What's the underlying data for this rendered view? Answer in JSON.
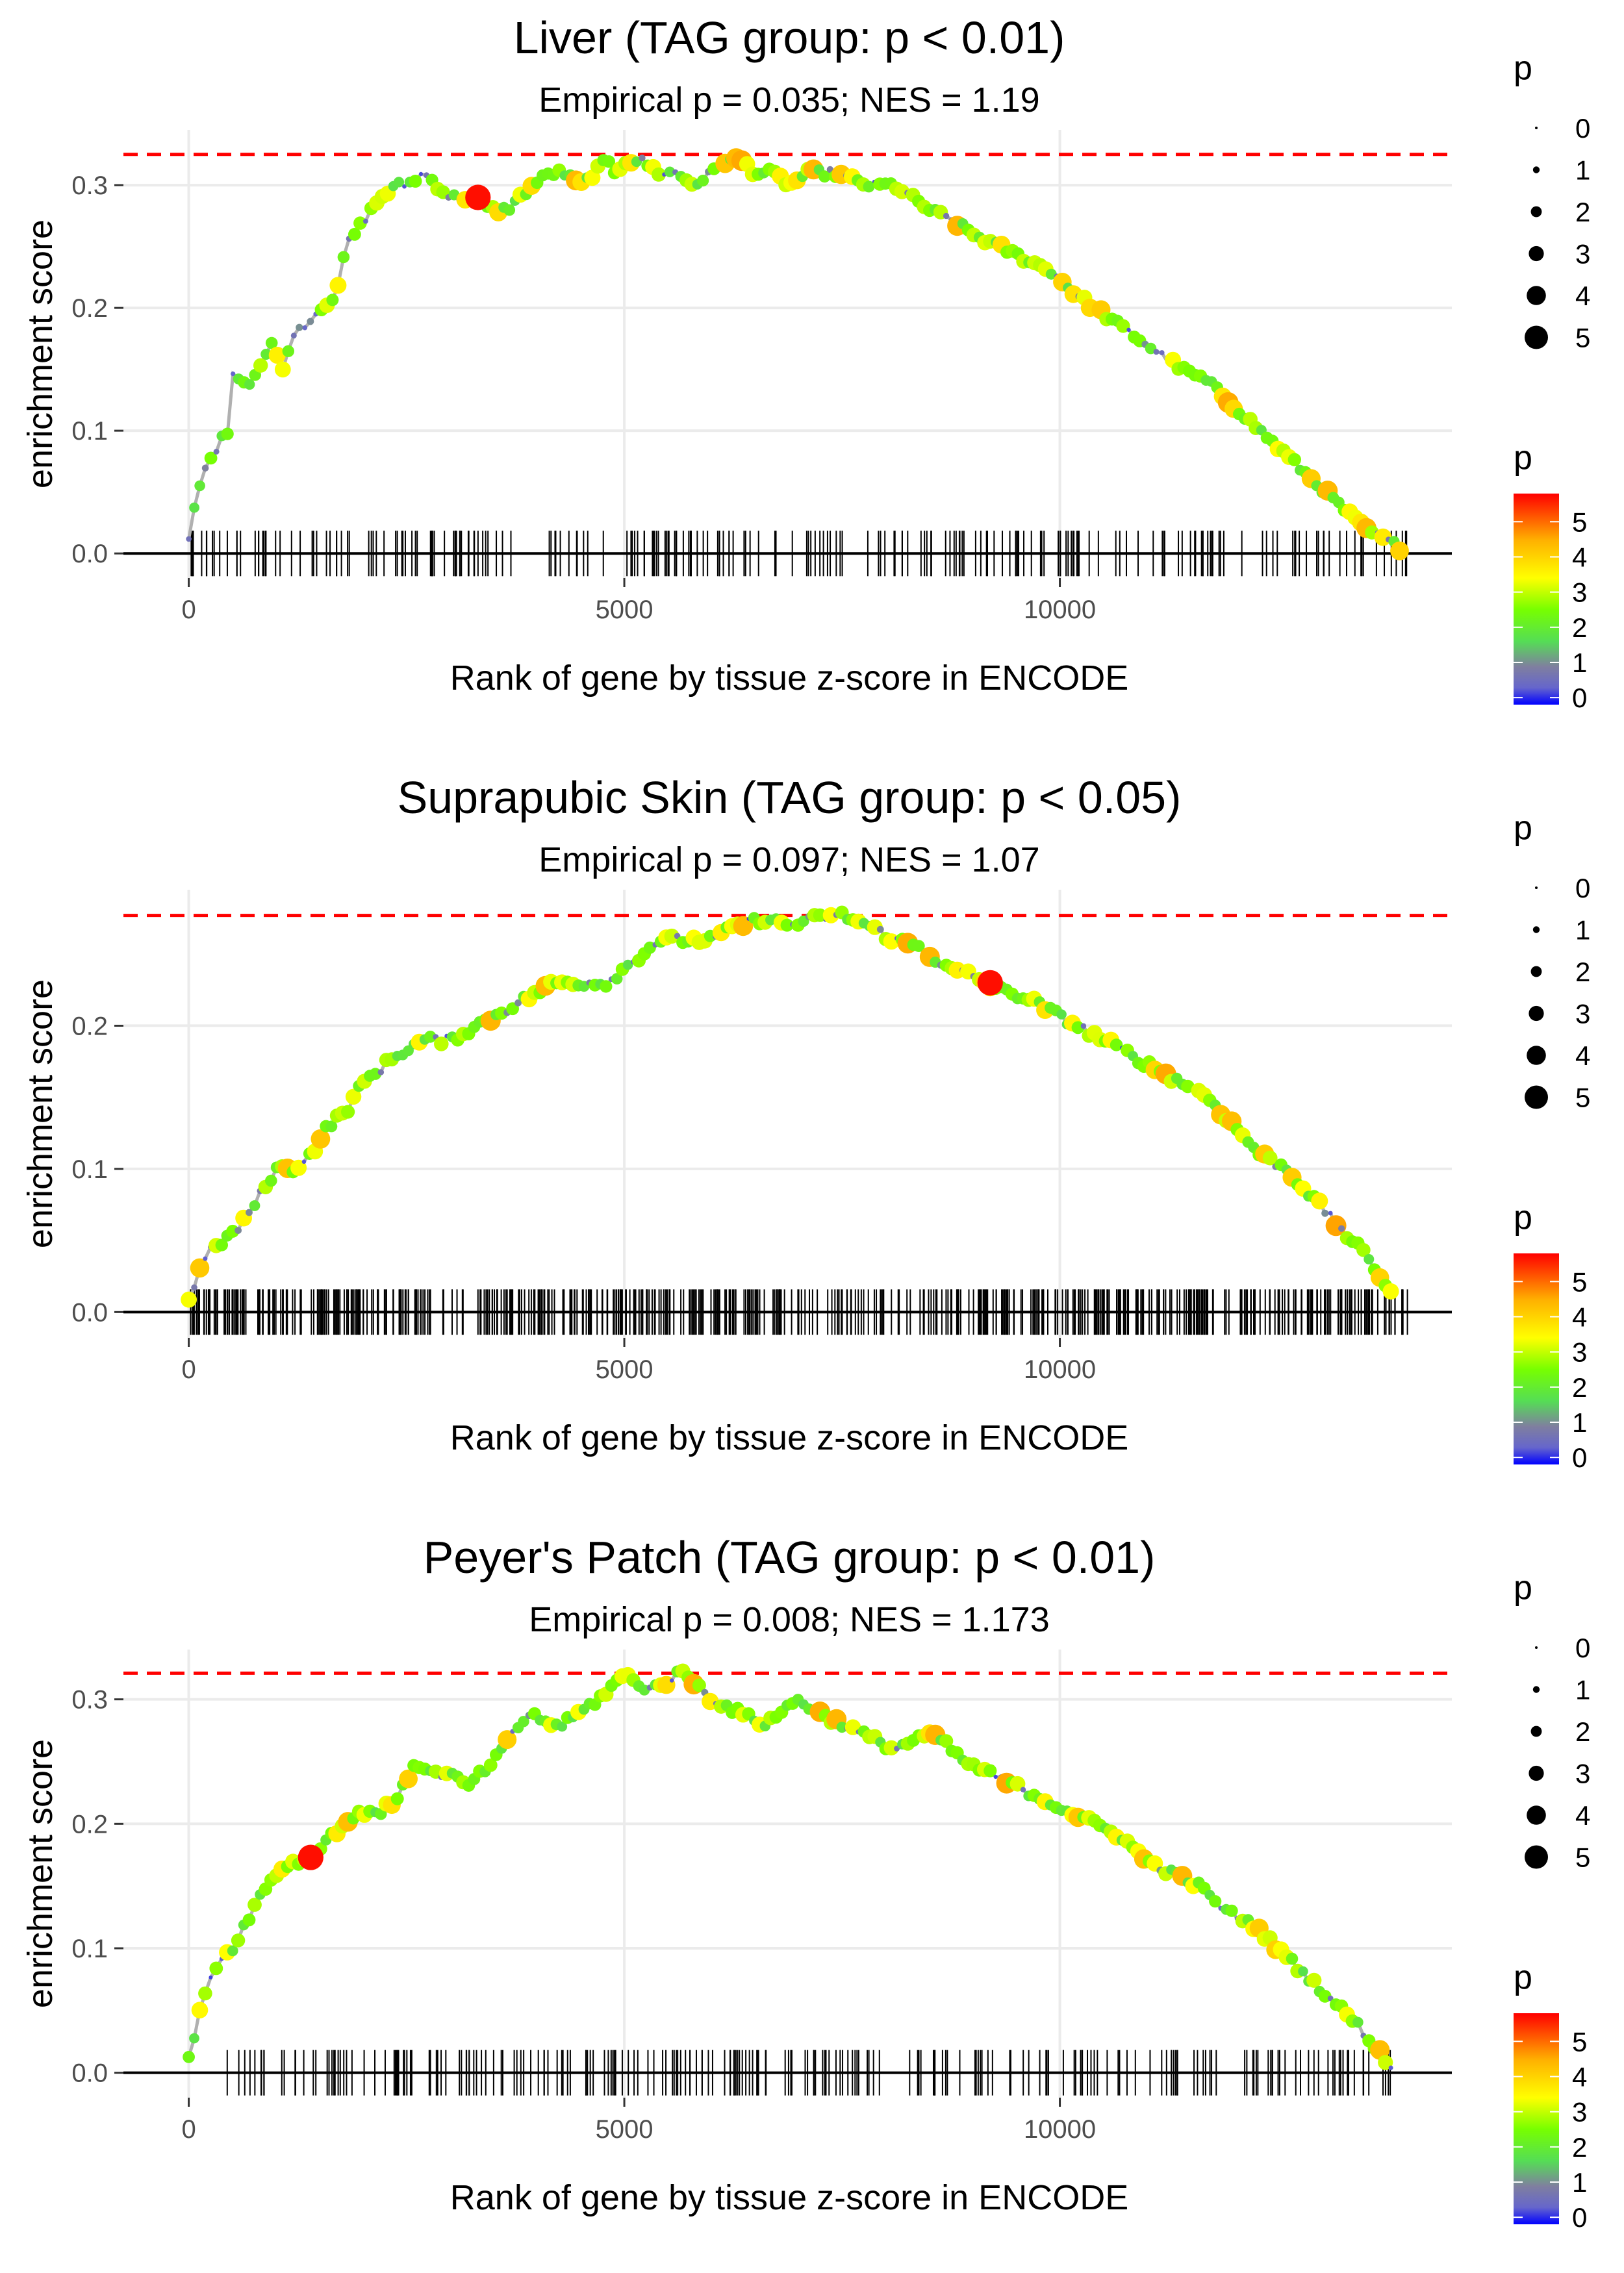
{
  "chart_data": [
    {
      "type": "line",
      "title": "Liver (TAG group: p < 0.01)",
      "subtitle": "Empirical p = 0.035; NES = 1.19",
      "xlabel": "Rank of gene by tissue z-score in ENCODE",
      "ylabel": "enrichment score",
      "xlim": [
        -750,
        14500
      ],
      "ylim": [
        -0.02,
        0.345
      ],
      "x_ticks": [
        0,
        5000,
        10000
      ],
      "x_tick_labels": [
        "0",
        "5000",
        "10000"
      ],
      "y_ticks": [
        0.0,
        0.1,
        0.2,
        0.3
      ],
      "y_tick_labels": [
        "0.0",
        "0.1",
        "0.2",
        "0.3"
      ],
      "max_es": 0.325,
      "x": [
        0,
        100,
        200,
        350,
        450,
        500,
        600,
        700,
        800,
        950,
        1100,
        1200,
        1400,
        1500,
        1700,
        1800,
        2000,
        2200,
        2400,
        2500,
        2700,
        3000,
        3300,
        3450,
        3650,
        3800,
        3950,
        4150,
        4300,
        4500,
        4650,
        4800,
        4900,
        5000,
        5200,
        5400,
        5600,
        5800,
        6000,
        6150,
        6350,
        6500,
        6700,
        6900,
        7100,
        7400,
        7800,
        8100,
        8300,
        8500,
        8800,
        9000,
        9300,
        9600,
        9900,
        10200,
        10600,
        11000,
        11400,
        11700,
        12000,
        12300,
        12600,
        12900,
        13200,
        13500,
        13900
      ],
      "es": [
        0.01,
        0.05,
        0.07,
        0.09,
        0.1,
        0.15,
        0.14,
        0.14,
        0.15,
        0.17,
        0.15,
        0.18,
        0.19,
        0.2,
        0.21,
        0.25,
        0.27,
        0.29,
        0.3,
        0.3,
        0.31,
        0.29,
        0.29,
        0.28,
        0.28,
        0.29,
        0.3,
        0.31,
        0.31,
        0.3,
        0.31,
        0.32,
        0.31,
        0.32,
        0.32,
        0.31,
        0.31,
        0.3,
        0.31,
        0.32,
        0.32,
        0.31,
        0.31,
        0.3,
        0.31,
        0.31,
        0.3,
        0.3,
        0.29,
        0.28,
        0.27,
        0.26,
        0.25,
        0.24,
        0.23,
        0.21,
        0.19,
        0.17,
        0.15,
        0.14,
        0.12,
        0.1,
        0.08,
        0.06,
        0.04,
        0.02,
        0.005
      ],
      "highlight": {
        "x": 3320,
        "es": 0.29,
        "p": 5.5
      },
      "hit_density": "sparse",
      "legend_size": {
        "title": "p",
        "labels": [
          "0",
          "1",
          "2",
          "3",
          "4",
          "5"
        ]
      },
      "legend_color": {
        "title": "p",
        "labels": [
          "5",
          "4",
          "3",
          "2",
          "1",
          "0"
        ],
        "colors": [
          "#ff0000",
          "#ffaa00",
          "#ffff00",
          "#55ee33",
          "#7f7fa8",
          "#0000ff"
        ]
      }
    },
    {
      "type": "line",
      "title": "Suprapubic Skin (TAG group: p < 0.05)",
      "subtitle": "Empirical p = 0.097; NES = 1.07",
      "xlabel": "Rank of gene by tissue z-score in ENCODE",
      "ylabel": "enrichment score",
      "xlim": [
        -750,
        14500
      ],
      "ylim": [
        -0.018,
        0.295
      ],
      "x_ticks": [
        0,
        5000,
        10000
      ],
      "x_tick_labels": [
        "0",
        "5000",
        "10000"
      ],
      "y_ticks": [
        0.0,
        0.1,
        0.2
      ],
      "y_tick_labels": [
        "0.0",
        "0.1",
        "0.2"
      ],
      "max_es": 0.277,
      "x": [
        0,
        200,
        400,
        600,
        800,
        1000,
        1200,
        1400,
        1600,
        1800,
        2000,
        2200,
        2400,
        2700,
        3000,
        3300,
        3600,
        3900,
        4200,
        4500,
        4800,
        5000,
        5200,
        5400,
        5700,
        6000,
        6300,
        6600,
        6900,
        7200,
        7500,
        7800,
        8100,
        8400,
        8700,
        9000,
        9300,
        9600,
        9900,
        10200,
        10500,
        10800,
        11100,
        11400,
        11700,
        12000,
        12300,
        12600,
        12900,
        13200,
        13500,
        13800
      ],
      "es": [
        0.01,
        0.04,
        0.05,
        0.06,
        0.08,
        0.1,
        0.1,
        0.11,
        0.13,
        0.14,
        0.16,
        0.17,
        0.18,
        0.19,
        0.19,
        0.2,
        0.21,
        0.22,
        0.23,
        0.23,
        0.23,
        0.24,
        0.25,
        0.26,
        0.26,
        0.26,
        0.27,
        0.275,
        0.27,
        0.275,
        0.277,
        0.27,
        0.26,
        0.255,
        0.24,
        0.235,
        0.225,
        0.22,
        0.21,
        0.2,
        0.19,
        0.18,
        0.17,
        0.16,
        0.15,
        0.13,
        0.11,
        0.1,
        0.08,
        0.06,
        0.04,
        0.015
      ],
      "highlight": {
        "x": 9200,
        "es": 0.23,
        "p": 5.5
      },
      "hit_density": "dense",
      "legend_size": {
        "title": "p",
        "labels": [
          "0",
          "1",
          "2",
          "3",
          "4",
          "5"
        ]
      },
      "legend_color": {
        "title": "p",
        "labels": [
          "5",
          "4",
          "3",
          "2",
          "1",
          "0"
        ],
        "colors": [
          "#ff0000",
          "#ffaa00",
          "#ffff00",
          "#55ee33",
          "#7f7fa8",
          "#0000ff"
        ]
      }
    },
    {
      "type": "line",
      "title": "Peyer's Patch (TAG group: p < 0.01)",
      "subtitle": "Empirical p = 0.008; NES = 1.173",
      "xlabel": "Rank of gene by tissue z-score in ENCODE",
      "ylabel": "enrichment score",
      "xlim": [
        -750,
        14500
      ],
      "ylim": [
        -0.02,
        0.34
      ],
      "x_ticks": [
        0,
        5000,
        10000
      ],
      "x_tick_labels": [
        "0",
        "5000",
        "10000"
      ],
      "y_ticks": [
        0.0,
        0.1,
        0.2,
        0.3
      ],
      "y_tick_labels": [
        "0.0",
        "0.1",
        "0.2",
        "0.3"
      ],
      "max_es": 0.321,
      "x": [
        0,
        100,
        200,
        350,
        500,
        650,
        800,
        1000,
        1200,
        1400,
        1600,
        1800,
        2000,
        2200,
        2400,
        2600,
        2800,
        3000,
        3200,
        3350,
        3500,
        3700,
        3800,
        3950,
        4100,
        4300,
        4500,
        4700,
        4850,
        5000,
        5200,
        5400,
        5600,
        5700,
        6000,
        6300,
        6600,
        6800,
        7000,
        7200,
        7500,
        7800,
        8100,
        8400,
        8600,
        8900,
        9200,
        9500,
        9800,
        10100,
        10400,
        10700,
        11000,
        11300,
        11600,
        11900,
        12200,
        12500,
        12800,
        13100,
        13400,
        13800
      ],
      "es": [
        0.01,
        0.04,
        0.07,
        0.09,
        0.1,
        0.12,
        0.14,
        0.16,
        0.17,
        0.17,
        0.19,
        0.2,
        0.21,
        0.21,
        0.22,
        0.25,
        0.24,
        0.24,
        0.23,
        0.24,
        0.25,
        0.27,
        0.28,
        0.29,
        0.28,
        0.28,
        0.29,
        0.3,
        0.31,
        0.32,
        0.31,
        0.31,
        0.32,
        0.321,
        0.3,
        0.29,
        0.28,
        0.29,
        0.3,
        0.29,
        0.28,
        0.27,
        0.26,
        0.27,
        0.27,
        0.25,
        0.24,
        0.23,
        0.22,
        0.21,
        0.2,
        0.19,
        0.17,
        0.16,
        0.15,
        0.13,
        0.12,
        0.1,
        0.08,
        0.06,
        0.04,
        0.005
      ],
      "highlight": {
        "x": 1400,
        "es": 0.173,
        "p": 5.5
      },
      "hit_density": "sparse",
      "legend_size": {
        "title": "p",
        "labels": [
          "0",
          "1",
          "2",
          "3",
          "4",
          "5"
        ]
      },
      "legend_color": {
        "title": "p",
        "labels": [
          "5",
          "4",
          "3",
          "2",
          "1",
          "0"
        ],
        "colors": [
          "#ff0000",
          "#ffaa00",
          "#ffff00",
          "#55ee33",
          "#7f7fa8",
          "#0000ff"
        ]
      }
    }
  ]
}
